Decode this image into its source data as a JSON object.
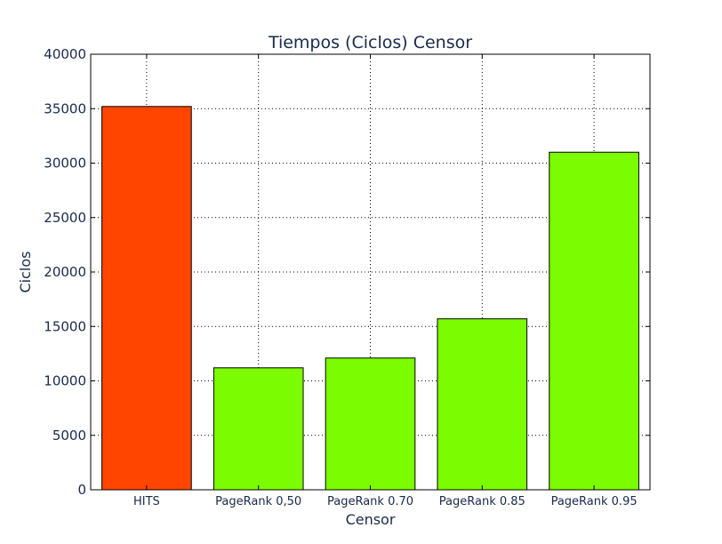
{
  "chart_data": {
    "type": "bar",
    "title": "Tiempos (Ciclos) Censor",
    "xlabel": "Censor",
    "ylabel": "Ciclos",
    "categories": [
      "HITS",
      "PageRank 0,50",
      "PageRank 0.70",
      "PageRank 0.85",
      "PageRank 0.95"
    ],
    "values": [
      35200,
      11200,
      12100,
      15700,
      31000
    ],
    "colors": [
      "#ff4500",
      "#7cfc00",
      "#7cfc00",
      "#7cfc00",
      "#7cfc00"
    ],
    "ylim": [
      0,
      40000
    ],
    "yticks": [
      "0",
      "5000",
      "10000",
      "15000",
      "20000",
      "25000",
      "30000",
      "35000",
      "40000"
    ],
    "grid": true
  }
}
